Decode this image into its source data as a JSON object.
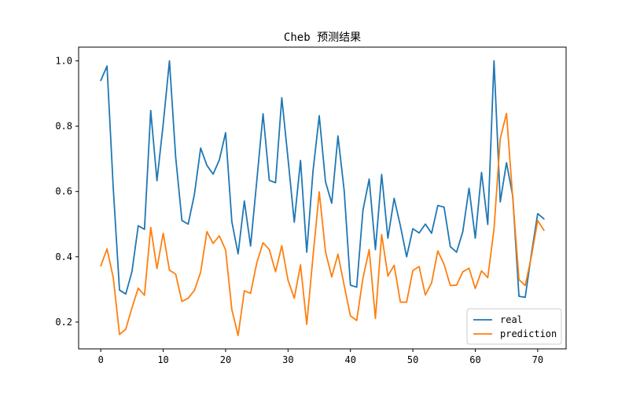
{
  "chart_data": {
    "type": "line",
    "title": "Cheb 预测结果",
    "xlabel": "",
    "ylabel": "",
    "xlim": [
      -3.55,
      74.55
    ],
    "ylim": [
      0.118,
      1.042
    ],
    "xticks": [
      0,
      10,
      20,
      30,
      40,
      50,
      60,
      70
    ],
    "yticks": [
      0.2,
      0.4,
      0.6,
      0.8,
      1.0
    ],
    "ytick_labels": [
      "0.2",
      "0.4",
      "0.6",
      "0.8",
      "1.0"
    ],
    "legend_position": "lower-right",
    "grid": false,
    "series": [
      {
        "name": "real",
        "color": "#1f77b4",
        "values": [
          0.94,
          0.984,
          0.61,
          0.298,
          0.286,
          0.355,
          0.495,
          0.484,
          0.848,
          0.633,
          0.806,
          1.0,
          0.705,
          0.511,
          0.5,
          0.591,
          0.733,
          0.68,
          0.653,
          0.697,
          0.78,
          0.507,
          0.409,
          0.571,
          0.433,
          0.634,
          0.838,
          0.634,
          0.627,
          0.887,
          0.7,
          0.506,
          0.695,
          0.414,
          0.662,
          0.832,
          0.63,
          0.564,
          0.77,
          0.602,
          0.313,
          0.307,
          0.542,
          0.638,
          0.422,
          0.652,
          0.457,
          0.579,
          0.495,
          0.4,
          0.486,
          0.473,
          0.5,
          0.472,
          0.557,
          0.552,
          0.431,
          0.414,
          0.477,
          0.61,
          0.457,
          0.658,
          0.499,
          1.0,
          0.568,
          0.688,
          0.586,
          0.279,
          0.276,
          0.41,
          0.532,
          0.516
        ]
      },
      {
        "name": "prediction",
        "color": "#ff7f0e",
        "values": [
          0.372,
          0.424,
          0.336,
          0.162,
          0.178,
          0.244,
          0.304,
          0.282,
          0.49,
          0.364,
          0.472,
          0.359,
          0.347,
          0.263,
          0.273,
          0.297,
          0.353,
          0.477,
          0.441,
          0.464,
          0.421,
          0.238,
          0.159,
          0.296,
          0.288,
          0.382,
          0.443,
          0.422,
          0.354,
          0.434,
          0.328,
          0.273,
          0.375,
          0.193,
          0.401,
          0.599,
          0.416,
          0.338,
          0.408,
          0.312,
          0.219,
          0.205,
          0.334,
          0.422,
          0.211,
          0.468,
          0.341,
          0.374,
          0.261,
          0.261,
          0.358,
          0.37,
          0.283,
          0.32,
          0.418,
          0.377,
          0.312,
          0.313,
          0.354,
          0.365,
          0.303,
          0.357,
          0.336,
          0.485,
          0.762,
          0.839,
          0.58,
          0.33,
          0.312,
          0.402,
          0.511,
          0.481
        ]
      }
    ]
  }
}
